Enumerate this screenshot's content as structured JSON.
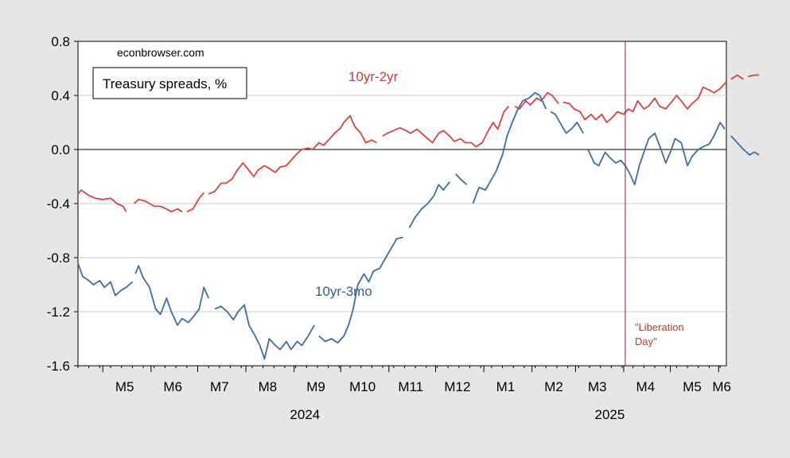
{
  "chart_data": {
    "type": "line",
    "title": "Treasury spreads, %",
    "source_note": "econbrowser.com",
    "xlabel": "",
    "ylabel": "",
    "ylim": [
      -1.6,
      0.8
    ],
    "yticks": [
      "0.8",
      "0.4",
      "0.0",
      "-0.4",
      "-0.8",
      "-1.2",
      "-1.6"
    ],
    "x_domain": [
      "2024-04-15",
      "2025-06-06"
    ],
    "month_ticks": [
      {
        "label": "M5",
        "date": "2024-05-15"
      },
      {
        "label": "M6",
        "date": "2024-06-15"
      },
      {
        "label": "M7",
        "date": "2024-07-15"
      },
      {
        "label": "M8",
        "date": "2024-08-15"
      },
      {
        "label": "M9",
        "date": "2024-09-15"
      },
      {
        "label": "M10",
        "date": "2024-10-15"
      },
      {
        "label": "M11",
        "date": "2024-11-15"
      },
      {
        "label": "M12",
        "date": "2024-12-15"
      },
      {
        "label": "M1",
        "date": "2025-01-15"
      },
      {
        "label": "M2",
        "date": "2025-02-15"
      },
      {
        "label": "M3",
        "date": "2025-03-15"
      },
      {
        "label": "M4",
        "date": "2025-04-15"
      },
      {
        "label": "M5",
        "date": "2025-05-15"
      },
      {
        "label": "M6",
        "date": "2025-06-03"
      }
    ],
    "year_labels": [
      {
        "label": "2024",
        "date": "2024-09-08"
      },
      {
        "label": "2025",
        "date": "2025-03-23"
      }
    ],
    "grid": true,
    "event_line": {
      "date": "2025-04-02",
      "label_line1": "\"Liberation",
      "label_line2": "Day\"",
      "color": "#9b1b3a"
    },
    "series": [
      {
        "name": "10yr-2yr",
        "color": "#d94040",
        "points": [
          [
            "2024-04-15",
            -0.33
          ],
          [
            "2024-04-17",
            -0.3
          ],
          [
            "2024-04-22",
            -0.34
          ],
          [
            "2024-04-26",
            -0.36
          ],
          [
            "2024-05-01",
            -0.37
          ],
          [
            "2024-05-06",
            -0.36
          ],
          [
            "2024-05-10",
            -0.4
          ],
          [
            "2024-05-14",
            -0.42
          ],
          [
            "2024-05-16",
            -0.46
          ],
          null,
          [
            "2024-05-21",
            -0.4
          ],
          [
            "2024-05-24",
            -0.37
          ],
          [
            "2024-05-28",
            -0.38
          ],
          [
            "2024-06-03",
            -0.42
          ],
          [
            "2024-06-07",
            -0.42
          ],
          [
            "2024-06-11",
            -0.44
          ],
          [
            "2024-06-14",
            -0.46
          ],
          [
            "2024-06-18",
            -0.44
          ],
          [
            "2024-06-21",
            -0.46
          ],
          null,
          [
            "2024-06-24",
            -0.46
          ],
          [
            "2024-06-28",
            -0.44
          ],
          [
            "2024-07-02",
            -0.36
          ],
          [
            "2024-07-05",
            -0.32
          ],
          null,
          [
            "2024-07-08",
            -0.33
          ],
          [
            "2024-07-12",
            -0.31
          ],
          [
            "2024-07-16",
            -0.25
          ],
          [
            "2024-07-19",
            -0.25
          ],
          [
            "2024-07-23",
            -0.22
          ],
          [
            "2024-07-26",
            -0.16
          ],
          [
            "2024-07-30",
            -0.1
          ],
          [
            "2024-08-02",
            -0.14
          ],
          [
            "2024-08-06",
            -0.2
          ],
          [
            "2024-08-09",
            -0.15
          ],
          [
            "2024-08-13",
            -0.12
          ],
          [
            "2024-08-16",
            -0.14
          ],
          [
            "2024-08-20",
            -0.17
          ],
          [
            "2024-08-23",
            -0.13
          ],
          [
            "2024-08-27",
            -0.12
          ],
          [
            "2024-08-30",
            -0.08
          ],
          [
            "2024-09-03",
            -0.03
          ],
          [
            "2024-09-06",
            0.0
          ],
          [
            "2024-09-10",
            0.01
          ],
          [
            "2024-09-13",
            0.0
          ],
          [
            "2024-09-17",
            0.05
          ],
          [
            "2024-09-20",
            0.03
          ],
          [
            "2024-09-24",
            0.08
          ],
          [
            "2024-09-27",
            0.12
          ],
          [
            "2024-10-01",
            0.16
          ],
          [
            "2024-10-03",
            0.2
          ],
          [
            "2024-10-07",
            0.25
          ],
          [
            "2024-10-10",
            0.17
          ],
          [
            "2024-10-14",
            0.12
          ],
          [
            "2024-10-17",
            0.05
          ],
          [
            "2024-10-21",
            0.07
          ],
          [
            "2024-10-24",
            0.05
          ],
          null,
          [
            "2024-10-28",
            0.1
          ],
          [
            "2024-10-31",
            0.12
          ],
          [
            "2024-11-04",
            0.14
          ],
          [
            "2024-11-08",
            0.16
          ],
          [
            "2024-11-12",
            0.14
          ],
          [
            "2024-11-15",
            0.12
          ],
          [
            "2024-11-19",
            0.15
          ],
          [
            "2024-11-22",
            0.12
          ],
          [
            "2024-11-26",
            0.08
          ],
          [
            "2024-11-29",
            0.05
          ],
          [
            "2024-12-03",
            0.12
          ],
          [
            "2024-12-06",
            0.14
          ],
          [
            "2024-12-10",
            0.1
          ],
          [
            "2024-12-13",
            0.06
          ],
          [
            "2024-12-17",
            0.08
          ],
          [
            "2024-12-20",
            0.05
          ],
          [
            "2024-12-24",
            0.05
          ],
          [
            "2024-12-27",
            0.02
          ],
          [
            "2024-12-31",
            0.05
          ],
          [
            "2025-01-03",
            0.12
          ],
          [
            "2025-01-07",
            0.2
          ],
          [
            "2025-01-10",
            0.15
          ],
          [
            "2025-01-14",
            0.28
          ],
          [
            "2025-01-17",
            0.32
          ],
          null,
          [
            "2025-01-21",
            0.32
          ],
          [
            "2025-01-24",
            0.3
          ],
          [
            "2025-01-28",
            0.36
          ],
          [
            "2025-01-31",
            0.33
          ],
          [
            "2025-02-04",
            0.38
          ],
          [
            "2025-02-07",
            0.36
          ],
          [
            "2025-02-11",
            0.42
          ],
          [
            "2025-02-14",
            0.4
          ],
          [
            "2025-02-18",
            0.34
          ],
          null,
          [
            "2025-02-21",
            0.35
          ],
          [
            "2025-02-25",
            0.34
          ],
          [
            "2025-02-28",
            0.3
          ],
          [
            "2025-03-04",
            0.28
          ],
          [
            "2025-03-07",
            0.22
          ],
          [
            "2025-03-11",
            0.26
          ],
          [
            "2025-03-14",
            0.22
          ],
          [
            "2025-03-18",
            0.26
          ],
          [
            "2025-03-21",
            0.2
          ],
          [
            "2025-03-25",
            0.24
          ],
          [
            "2025-03-28",
            0.28
          ],
          [
            "2025-04-01",
            0.26
          ],
          [
            "2025-04-04",
            0.3
          ],
          [
            "2025-04-07",
            0.28
          ],
          [
            "2025-04-10",
            0.36
          ],
          [
            "2025-04-14",
            0.3
          ],
          [
            "2025-04-17",
            0.32
          ],
          [
            "2025-04-21",
            0.38
          ],
          [
            "2025-04-24",
            0.32
          ],
          [
            "2025-04-28",
            0.3
          ],
          [
            "2025-05-01",
            0.34
          ],
          [
            "2025-05-05",
            0.4
          ],
          [
            "2025-05-08",
            0.36
          ],
          [
            "2025-05-12",
            0.3
          ],
          [
            "2025-05-15",
            0.34
          ],
          [
            "2025-05-19",
            0.38
          ],
          [
            "2025-05-22",
            0.46
          ],
          [
            "2025-05-26",
            0.44
          ],
          [
            "2025-05-29",
            0.42
          ],
          [
            "2025-06-02",
            0.45
          ],
          [
            "2025-06-06",
            0.5
          ],
          null,
          [
            "2025-06-09",
            0.52
          ],
          [
            "2025-06-13",
            0.55
          ],
          [
            "2025-06-17",
            0.52
          ],
          null,
          [
            "2025-06-20",
            0.54
          ],
          [
            "2025-06-24",
            0.55
          ],
          [
            "2025-06-27",
            0.55
          ]
        ]
      },
      {
        "name": "10yr-3mo",
        "color": "#3d6e9e",
        "points": [
          [
            "2024-04-15",
            -0.84
          ],
          [
            "2024-04-18",
            -0.94
          ],
          [
            "2024-04-22",
            -0.97
          ],
          [
            "2024-04-25",
            -1.0
          ],
          [
            "2024-04-29",
            -0.97
          ],
          [
            "2024-05-02",
            -1.02
          ],
          [
            "2024-05-06",
            -0.98
          ],
          [
            "2024-05-09",
            -1.08
          ],
          [
            "2024-05-13",
            -1.04
          ],
          [
            "2024-05-16",
            -1.02
          ],
          [
            "2024-05-20",
            -0.98
          ],
          null,
          [
            "2024-05-22",
            -0.92
          ],
          [
            "2024-05-24",
            -0.86
          ],
          [
            "2024-05-27",
            -0.95
          ],
          [
            "2024-05-31",
            -1.02
          ],
          [
            "2024-06-04",
            -1.18
          ],
          [
            "2024-06-07",
            -1.22
          ],
          [
            "2024-06-11",
            -1.1
          ],
          [
            "2024-06-14",
            -1.2
          ],
          [
            "2024-06-18",
            -1.3
          ],
          [
            "2024-06-21",
            -1.25
          ],
          [
            "2024-06-25",
            -1.28
          ],
          [
            "2024-06-28",
            -1.24
          ],
          [
            "2024-07-02",
            -1.18
          ],
          [
            "2024-07-05",
            -1.02
          ],
          [
            "2024-07-08",
            -1.1
          ],
          null,
          [
            "2024-07-12",
            -1.18
          ],
          [
            "2024-07-16",
            -1.16
          ],
          [
            "2024-07-20",
            -1.2
          ],
          [
            "2024-07-24",
            -1.26
          ],
          [
            "2024-07-27",
            -1.2
          ],
          [
            "2024-07-31",
            -1.15
          ],
          [
            "2024-08-03",
            -1.3
          ],
          [
            "2024-08-07",
            -1.38
          ],
          [
            "2024-08-10",
            -1.45
          ],
          [
            "2024-08-13",
            -1.55
          ],
          [
            "2024-08-16",
            -1.4
          ],
          [
            "2024-08-20",
            -1.45
          ],
          [
            "2024-08-23",
            -1.48
          ],
          [
            "2024-08-27",
            -1.42
          ],
          [
            "2024-08-30",
            -1.48
          ],
          [
            "2024-09-03",
            -1.42
          ],
          [
            "2024-09-06",
            -1.45
          ],
          [
            "2024-09-10",
            -1.38
          ],
          [
            "2024-09-14",
            -1.3
          ],
          null,
          [
            "2024-09-17",
            -1.38
          ],
          [
            "2024-09-21",
            -1.42
          ],
          [
            "2024-09-25",
            -1.4
          ],
          [
            "2024-09-29",
            -1.43
          ],
          [
            "2024-10-03",
            -1.38
          ],
          [
            "2024-10-06",
            -1.3
          ],
          [
            "2024-10-09",
            -1.18
          ],
          [
            "2024-10-12",
            -1.0
          ],
          [
            "2024-10-16",
            -0.92
          ],
          [
            "2024-10-19",
            -0.98
          ],
          [
            "2024-10-22",
            -0.9
          ],
          [
            "2024-10-26",
            -0.88
          ],
          [
            "2024-10-30",
            -0.8
          ],
          [
            "2024-11-03",
            -0.72
          ],
          [
            "2024-11-06",
            -0.66
          ],
          [
            "2024-11-10",
            -0.65
          ],
          null,
          [
            "2024-11-14",
            -0.58
          ],
          [
            "2024-11-18",
            -0.5
          ],
          [
            "2024-11-22",
            -0.44
          ],
          [
            "2024-11-26",
            -0.4
          ],
          [
            "2024-11-30",
            -0.34
          ],
          [
            "2024-12-03",
            -0.26
          ],
          [
            "2024-12-06",
            -0.3
          ],
          [
            "2024-12-10",
            -0.24
          ],
          null,
          [
            "2024-12-14",
            -0.18
          ],
          [
            "2024-12-17",
            -0.22
          ],
          [
            "2024-12-21",
            -0.26
          ],
          null,
          [
            "2024-12-25",
            -0.4
          ],
          [
            "2024-12-29",
            -0.28
          ],
          [
            "2025-01-02",
            -0.3
          ],
          [
            "2025-01-06",
            -0.22
          ],
          [
            "2025-01-09",
            -0.16
          ],
          [
            "2025-01-13",
            -0.04
          ],
          [
            "2025-01-16",
            0.1
          ],
          [
            "2025-01-20",
            0.22
          ],
          [
            "2025-01-23",
            0.3
          ],
          [
            "2025-01-26",
            0.36
          ],
          [
            "2025-01-30",
            0.38
          ],
          [
            "2025-02-03",
            0.42
          ],
          [
            "2025-02-06",
            0.4
          ],
          [
            "2025-02-10",
            0.3
          ],
          null,
          [
            "2025-02-13",
            0.28
          ],
          [
            "2025-02-16",
            0.26
          ],
          [
            "2025-02-20",
            0.18
          ],
          [
            "2025-02-23",
            0.12
          ],
          [
            "2025-02-27",
            0.16
          ],
          [
            "2025-03-02",
            0.2
          ],
          [
            "2025-03-06",
            0.12
          ],
          null,
          [
            "2025-03-09",
            0.0
          ],
          [
            "2025-03-13",
            -0.1
          ],
          [
            "2025-03-16",
            -0.12
          ],
          [
            "2025-03-20",
            -0.02
          ],
          [
            "2025-03-23",
            -0.06
          ],
          [
            "2025-03-27",
            -0.1
          ],
          [
            "2025-03-30",
            -0.08
          ],
          [
            "2025-04-02",
            -0.12
          ],
          [
            "2025-04-05",
            -0.18
          ],
          [
            "2025-04-08",
            -0.26
          ],
          [
            "2025-04-11",
            -0.12
          ],
          [
            "2025-04-14",
            -0.02
          ],
          [
            "2025-04-17",
            0.08
          ],
          [
            "2025-04-21",
            0.12
          ],
          [
            "2025-04-25",
            0.0
          ],
          [
            "2025-04-28",
            -0.1
          ],
          [
            "2025-05-01",
            -0.02
          ],
          [
            "2025-05-04",
            0.08
          ],
          [
            "2025-05-08",
            0.05
          ],
          [
            "2025-05-12",
            -0.12
          ],
          [
            "2025-05-15",
            -0.05
          ],
          [
            "2025-05-19",
            0.0
          ],
          [
            "2025-05-22",
            0.02
          ],
          [
            "2025-05-26",
            0.04
          ],
          [
            "2025-05-29",
            0.1
          ],
          [
            "2025-06-02",
            0.2
          ],
          [
            "2025-06-05",
            0.15
          ],
          null,
          [
            "2025-06-09",
            0.1
          ],
          [
            "2025-06-13",
            0.05
          ],
          [
            "2025-06-17",
            0.0
          ],
          [
            "2025-06-21",
            -0.04
          ],
          [
            "2025-06-24",
            -0.02
          ],
          [
            "2025-06-27",
            -0.04
          ]
        ]
      }
    ]
  }
}
